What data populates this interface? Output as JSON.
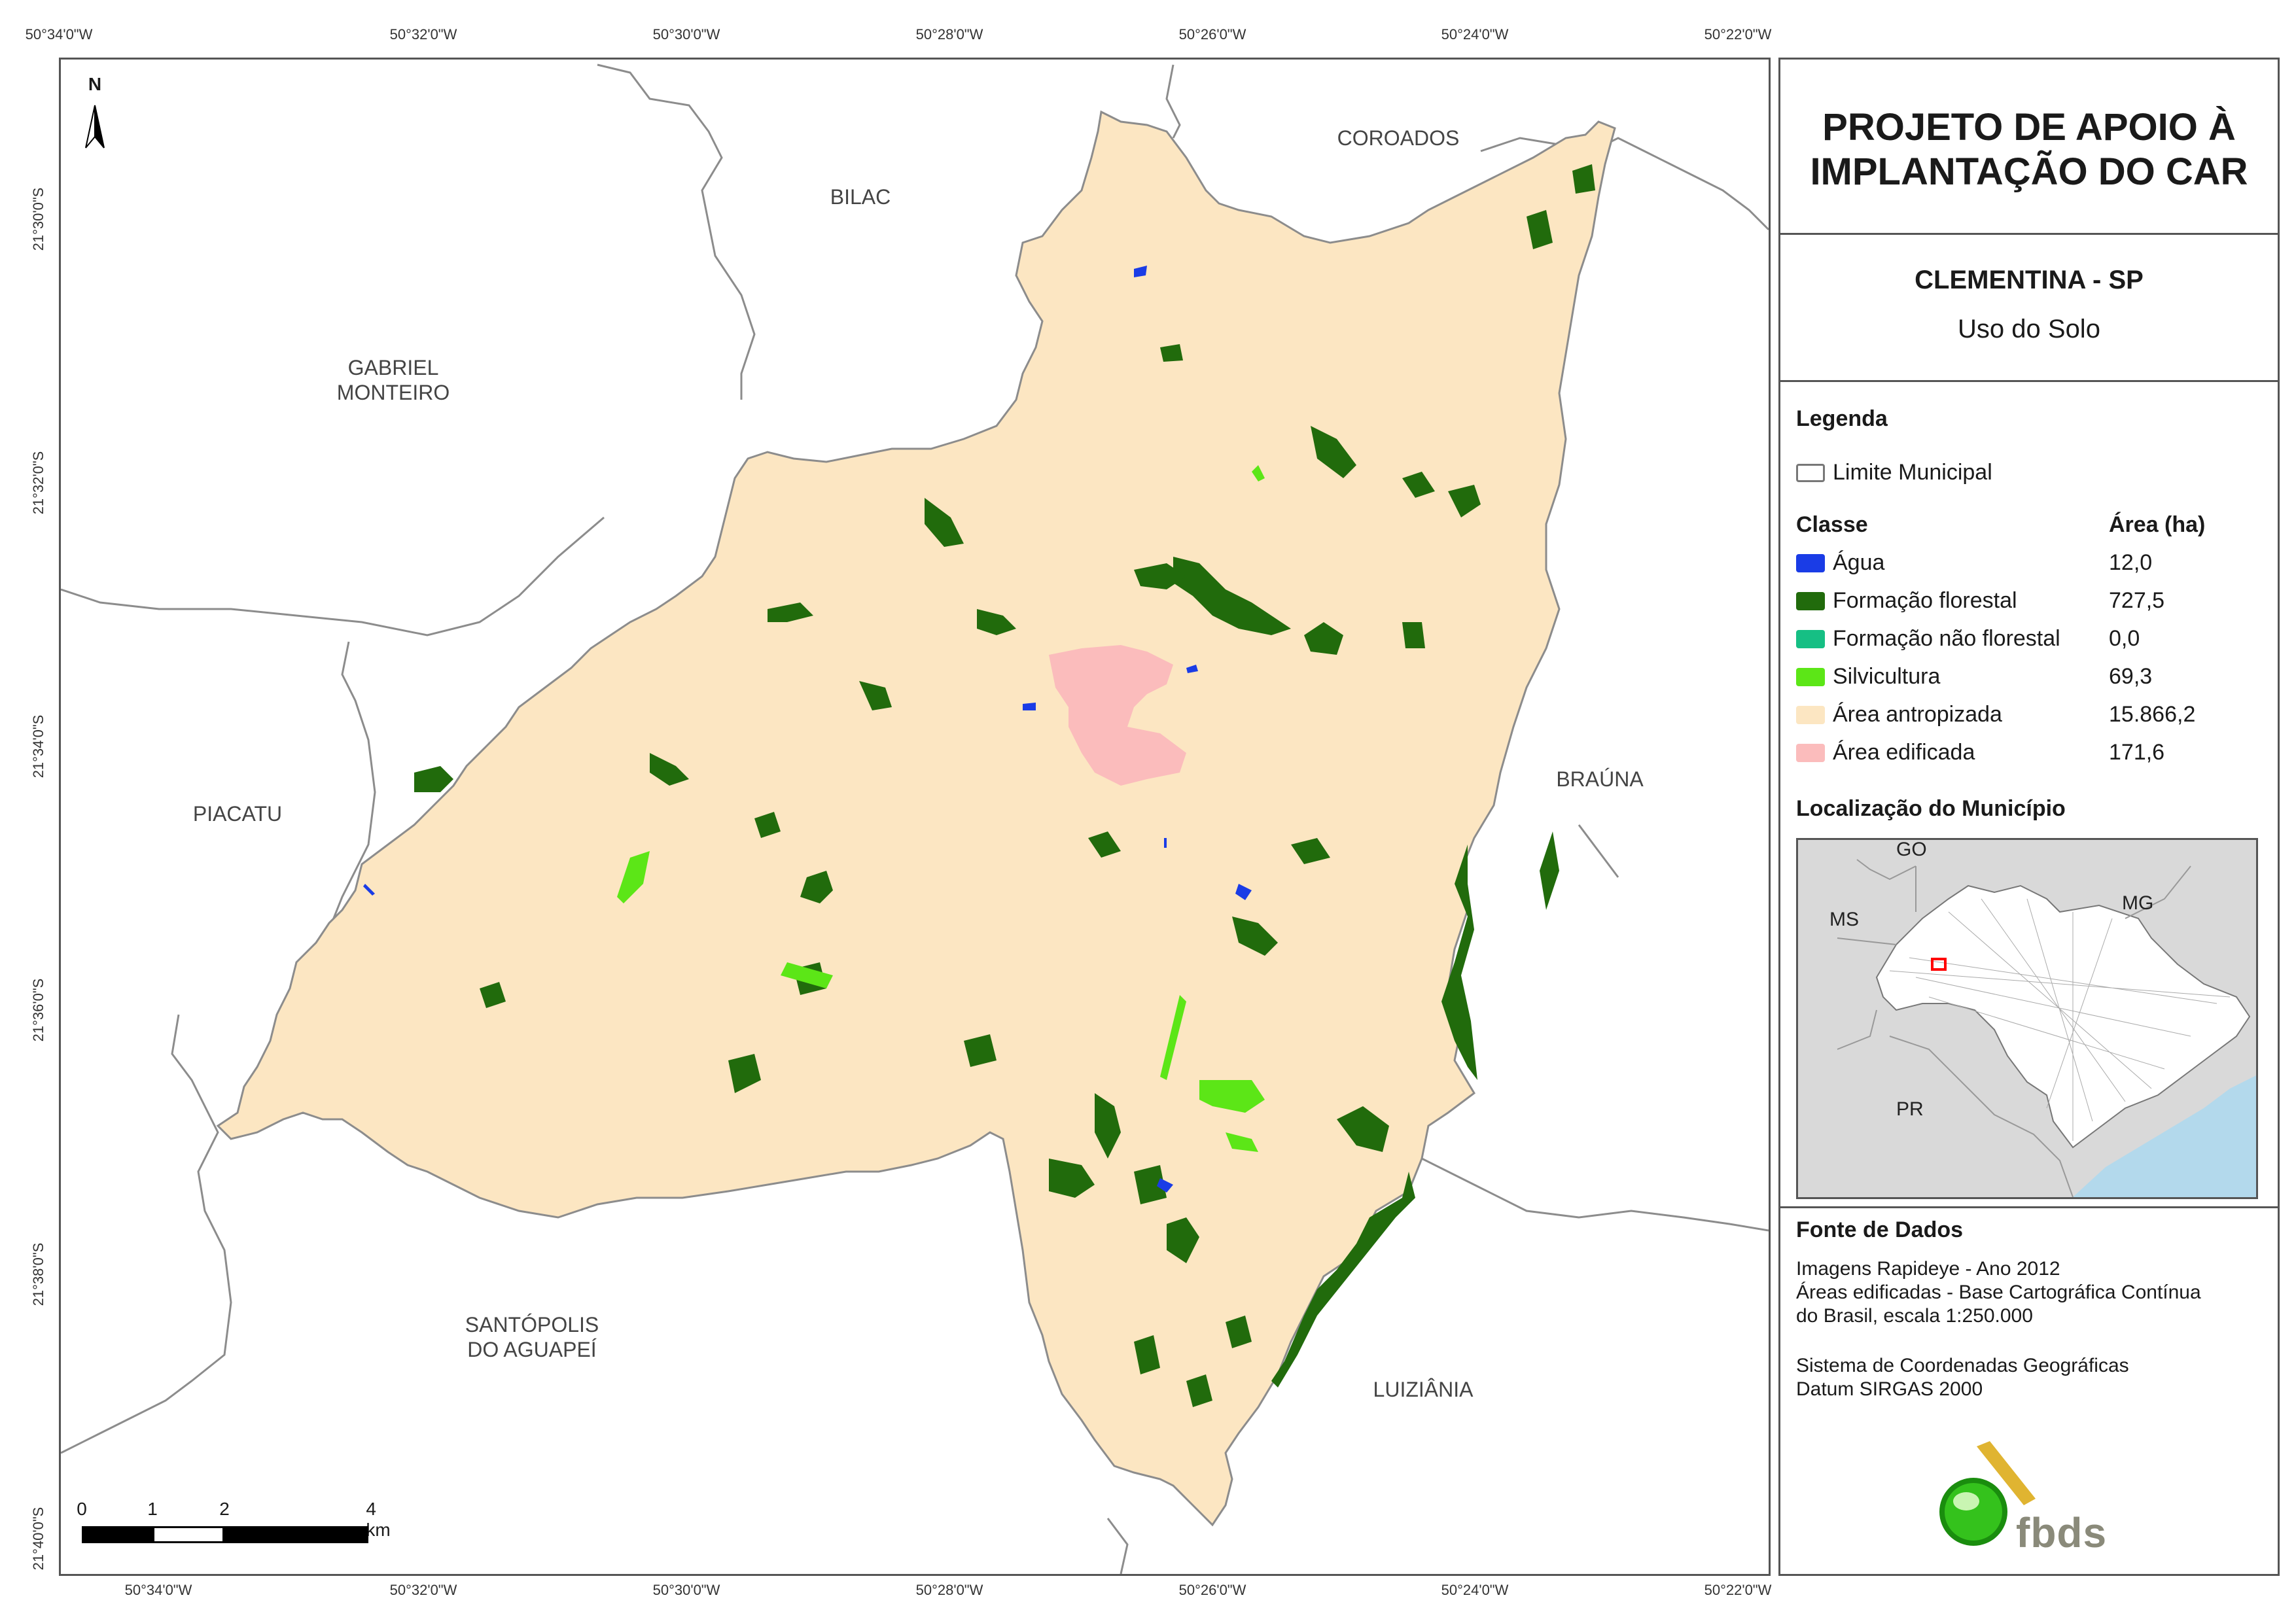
{
  "coordinates": {
    "longitudes": [
      "50°34'0\"W",
      "50°32'0\"W",
      "50°30'0\"W",
      "50°28'0\"W",
      "50°26'0\"W",
      "50°24'0\"W",
      "50°22'0\"W"
    ],
    "latitudes": [
      "21°30'0\"S",
      "21°32'0\"S",
      "21°34'0\"S",
      "21°36'0\"S",
      "21°38'0\"S",
      "21°40'0\"S"
    ]
  },
  "map": {
    "north_letter": "N",
    "neighbors": {
      "coroados": "COROADOS",
      "bilac": "BILAC",
      "gabriel_1": "GABRIEL",
      "gabriel_2": "MONTEIRO",
      "piacatu": "PIACATU",
      "brauna": "BRAÚNA",
      "santopolis_1": "SANTÓPOLIS",
      "santopolis_2": "DO AGUAPEÍ",
      "luiziania": "LUIZIÂNIA"
    },
    "scale": {
      "n0": "0",
      "n1": "1",
      "n2": "2",
      "n4": "4 km"
    },
    "colors": {
      "antropizada": "#fce6c2",
      "florestal": "#216b0c",
      "silvicultura": "#5ce617",
      "agua": "#1a3ce6",
      "edificada": "#fbbcbc",
      "boundary": "#8c8c8c"
    }
  },
  "panel": {
    "title_line1": "PROJETO DE APOIO À",
    "title_line2": "IMPLANTAÇÃO DO CAR",
    "municipality": "CLEMENTINA - SP",
    "theme": "Uso do Solo",
    "legend_heading": "Legenda",
    "limit_label": "Limite Municipal",
    "class_heading": "Classe",
    "area_heading": "Área (ha)",
    "classes": [
      {
        "label": "Água",
        "area": "12,0",
        "color": "#1a3ce6"
      },
      {
        "label": "Formação florestal",
        "area": "727,5",
        "color": "#216b0c"
      },
      {
        "label": "Formação não florestal",
        "area": "0,0",
        "color": "#16bf84"
      },
      {
        "label": "Silvicultura",
        "area": "69,3",
        "color": "#5ce617"
      },
      {
        "label": "Área antropizada",
        "area": "15.866,2",
        "color": "#fce6c2"
      },
      {
        "label": "Área edificada",
        "area": "171,6",
        "color": "#fbbcbc"
      }
    ],
    "location_heading": "Localização do Município",
    "location_labels": {
      "go": "GO",
      "ms": "MS",
      "mg": "MG",
      "pr": "PR"
    },
    "source_heading": "Fonte de Dados",
    "source_lines": [
      "Imagens Rapideye - Ano 2012",
      "Áreas edificadas - Base Cartográfica Contínua",
      "do Brasil, escala 1:250.000",
      "Sistema de Coordenadas Geográficas",
      "Datum SIRGAS 2000"
    ],
    "logo_text": "fbds"
  }
}
